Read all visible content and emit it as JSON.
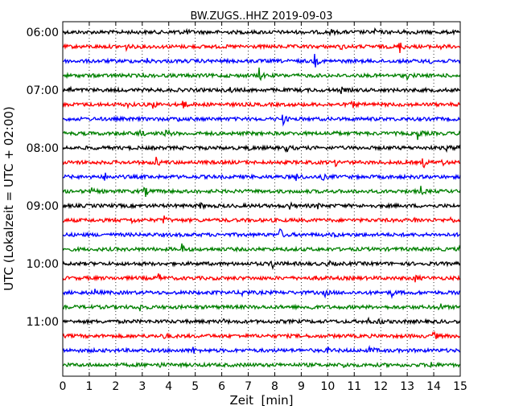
{
  "chart_data": {
    "type": "line",
    "chart_kind": "helicorder",
    "title": "BW.ZUGS..HHZ 2019-09-03",
    "xlabel": "Zeit  [min]",
    "ylabel": "UTC (Lokalzeit = UTC + 02:00)",
    "xlim": [
      0,
      15
    ],
    "x_ticks": [
      0,
      1,
      2,
      3,
      4,
      5,
      6,
      7,
      8,
      9,
      10,
      11,
      12,
      13,
      14,
      15
    ],
    "x_tick_labels": [
      "0",
      "1",
      "2",
      "3",
      "4",
      "5",
      "6",
      "7",
      "8",
      "9",
      "10",
      "11",
      "12",
      "13",
      "14",
      "15"
    ],
    "grid": "vertical dotted at each minute",
    "y_tick_labels": [
      "06:00",
      "07:00",
      "08:00",
      "09:00",
      "10:00",
      "11:00"
    ],
    "trace_interval_min": 15,
    "color_cycle": [
      "#000000",
      "#ff0000",
      "#0000ff",
      "#008000"
    ],
    "traces": [
      {
        "start": "06:00",
        "events": [
          [
            4.2,
            0.35
          ],
          [
            4.6,
            0.45
          ],
          [
            10.1,
            0.3
          ],
          [
            11.8,
            0.35
          ],
          [
            12.9,
            0.3
          ]
        ]
      },
      {
        "start": "06:15",
        "events": [
          [
            2.4,
            0.3
          ],
          [
            10.5,
            0.3
          ],
          [
            12.7,
            0.9
          ],
          [
            14.2,
            0.35
          ]
        ]
      },
      {
        "start": "06:30",
        "events": [
          [
            3.2,
            0.25
          ],
          [
            9.5,
            0.9
          ],
          [
            13.8,
            0.3
          ]
        ]
      },
      {
        "start": "06:45",
        "events": [
          [
            7.4,
            0.9
          ],
          [
            13.0,
            0.3
          ]
        ]
      },
      {
        "start": "07:00",
        "events": [
          [
            0.2,
            0.35
          ],
          [
            6.3,
            0.3
          ],
          [
            10.5,
            0.3
          ]
        ]
      },
      {
        "start": "07:15",
        "events": [
          [
            2.4,
            0.35
          ],
          [
            3.4,
            0.45
          ],
          [
            4.5,
            0.85
          ],
          [
            10.9,
            0.55
          ]
        ]
      },
      {
        "start": "07:30",
        "events": [
          [
            4.3,
            0.3
          ],
          [
            8.3,
            0.75
          ]
        ]
      },
      {
        "start": "07:45",
        "events": [
          [
            2.9,
            0.5
          ],
          [
            3.9,
            0.6
          ],
          [
            10.2,
            0.3
          ],
          [
            13.4,
            0.75
          ]
        ]
      },
      {
        "start": "08:00",
        "events": [
          [
            7.0,
            0.3
          ],
          [
            8.4,
            0.75
          ],
          [
            14.5,
            0.35
          ],
          [
            14.9,
            0.3
          ]
        ]
      },
      {
        "start": "08:15",
        "events": [
          [
            3.5,
            0.75
          ],
          [
            10.3,
            0.35
          ],
          [
            13.6,
            0.7
          ],
          [
            14.3,
            0.4
          ]
        ]
      },
      {
        "start": "08:30",
        "events": [
          [
            1.6,
            0.5
          ],
          [
            8.8,
            0.8
          ],
          [
            9.8,
            0.35
          ]
        ]
      },
      {
        "start": "08:45",
        "events": [
          [
            1.1,
            0.3
          ],
          [
            3.1,
            0.7
          ],
          [
            13.5,
            0.6
          ]
        ]
      },
      {
        "start": "09:00",
        "events": [
          [
            5.2,
            0.3
          ],
          [
            8.5,
            0.75
          ],
          [
            9.6,
            0.3
          ]
        ]
      },
      {
        "start": "09:15",
        "events": [
          [
            2.6,
            0.3
          ],
          [
            3.8,
            0.75
          ],
          [
            13.3,
            0.45
          ],
          [
            14.6,
            0.35
          ]
        ]
      },
      {
        "start": "09:30",
        "events": [
          [
            8.2,
            0.75
          ],
          [
            10.2,
            0.3
          ]
        ]
      },
      {
        "start": "09:45",
        "events": [
          [
            4.5,
            0.6
          ],
          [
            15.0,
            0.35
          ]
        ]
      },
      {
        "start": "10:00",
        "events": [
          [
            7.9,
            0.75
          ],
          [
            10.0,
            0.35
          ]
        ]
      },
      {
        "start": "10:15",
        "events": [
          [
            3.6,
            0.65
          ],
          [
            9.6,
            0.3
          ],
          [
            13.3,
            0.45
          ]
        ]
      },
      {
        "start": "10:30",
        "events": [
          [
            1.2,
            0.4
          ],
          [
            6.8,
            0.65
          ],
          [
            9.9,
            0.35
          ],
          [
            12.4,
            0.45
          ]
        ]
      },
      {
        "start": "10:45",
        "events": [
          [
            2.9,
            0.5
          ],
          [
            9.3,
            0.65
          ],
          [
            14.2,
            0.6
          ]
        ]
      },
      {
        "start": "11:00",
        "events": [
          [
            6.0,
            0.35
          ],
          [
            11.5,
            0.3
          ],
          [
            11.9,
            0.45
          ]
        ]
      },
      {
        "start": "11:15",
        "events": [
          [
            3.8,
            0.5
          ],
          [
            14.0,
            0.6
          ]
        ]
      },
      {
        "start": "11:30",
        "events": [
          [
            4.9,
            0.45
          ],
          [
            10.0,
            0.35
          ],
          [
            11.6,
            0.65
          ]
        ]
      },
      {
        "start": "11:45",
        "events": [
          [
            3.6,
            0.35
          ],
          [
            10.6,
            0.3
          ],
          [
            13.9,
            0.5
          ]
        ]
      }
    ]
  }
}
